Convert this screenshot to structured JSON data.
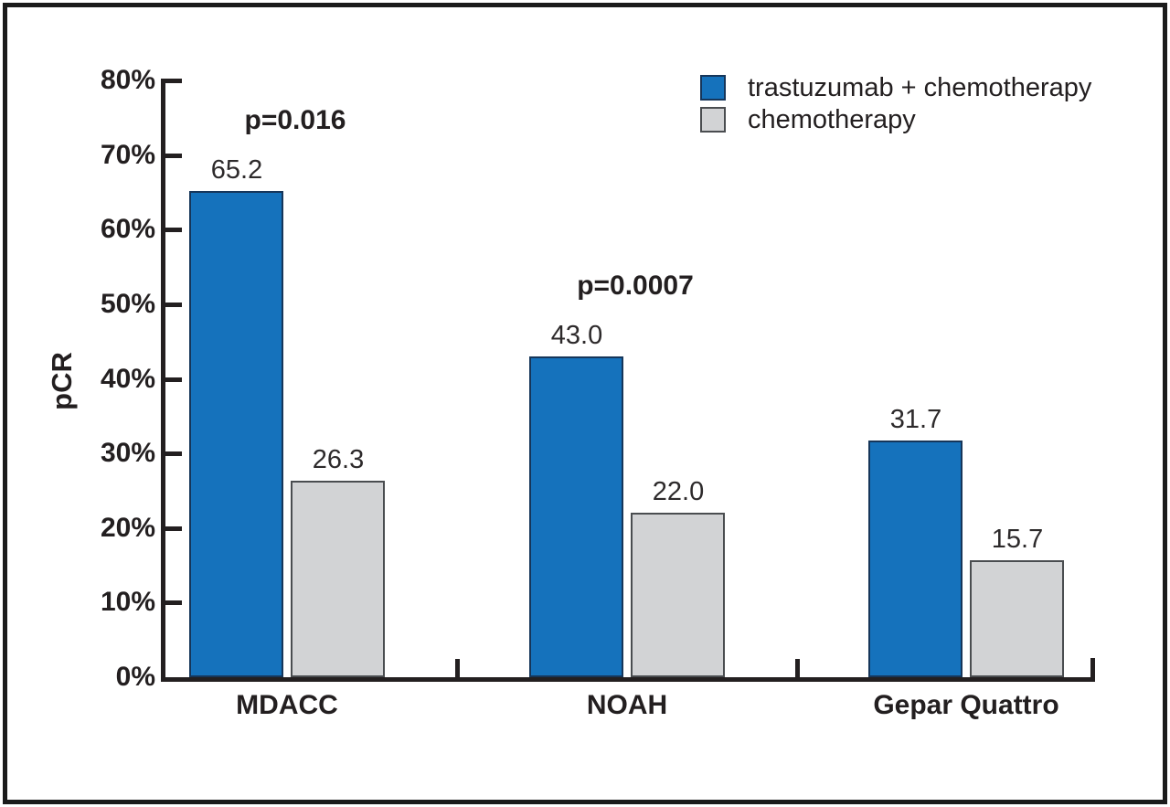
{
  "figure": {
    "background": "#ffffff",
    "border_color": "#1b1b1b",
    "axis_color": "#231f20",
    "text_color": "#231f20"
  },
  "chart_data": {
    "type": "bar",
    "title": "",
    "xlabel": "",
    "ylabel": "pCR",
    "ylim": [
      0,
      80
    ],
    "ytick_step": 10,
    "ytick_suffix": "%",
    "grid": false,
    "legend_position": "top-right",
    "categories": [
      "MDACC",
      "NOAH",
      "Gepar Quattro"
    ],
    "series": [
      {
        "name": "trastuzumab + chemotherapy",
        "color": "#1572bc",
        "border_color": "#16365a",
        "values": [
          65.2,
          43.0,
          31.7
        ]
      },
      {
        "name": "chemotherapy",
        "color": "#d2d3d5",
        "border_color": "#4a4d50",
        "values": [
          26.3,
          22.0,
          15.7
        ]
      }
    ],
    "annotations": [
      {
        "text": "p=0.016",
        "category_index": 0
      },
      {
        "text": "p=0.0007",
        "category_index": 1
      }
    ]
  }
}
